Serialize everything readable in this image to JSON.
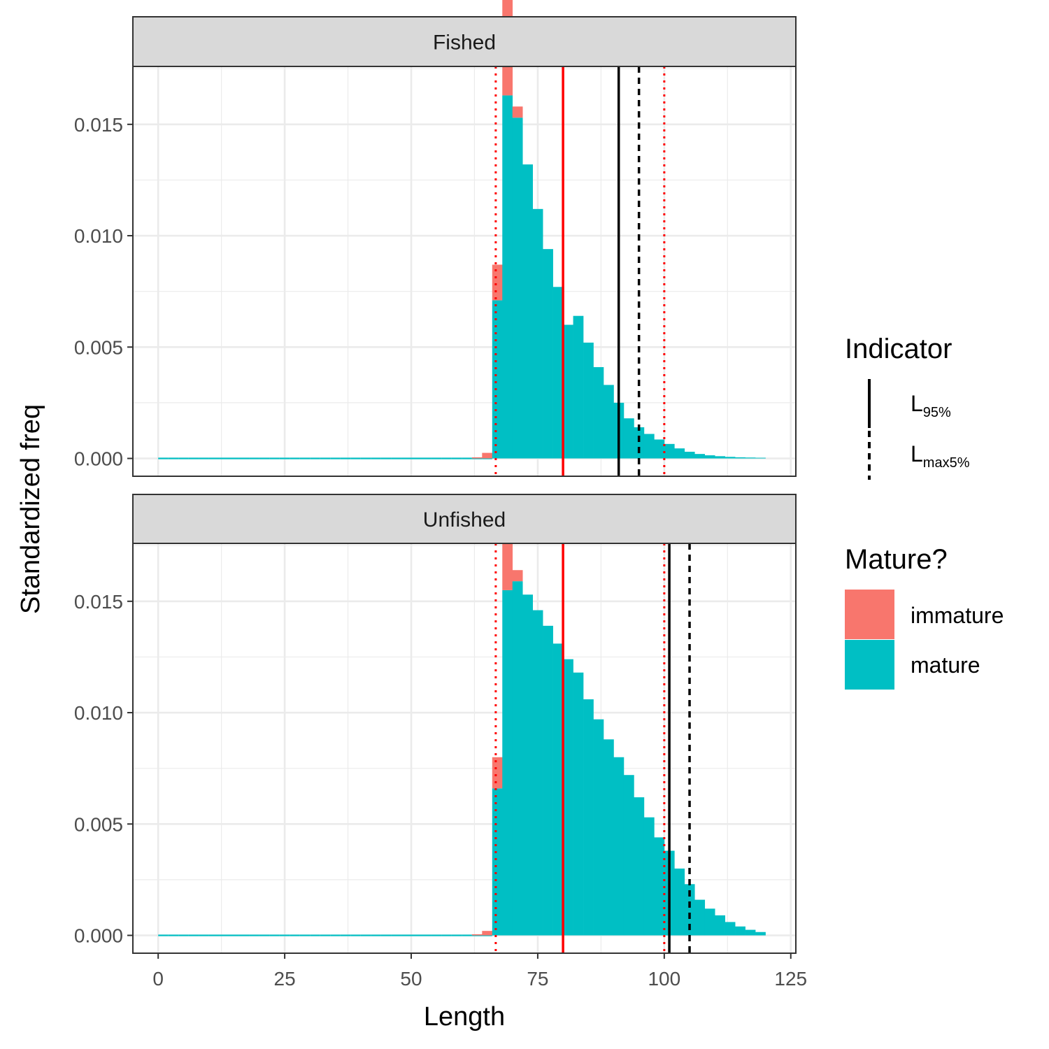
{
  "chart_data": {
    "type": "bar",
    "stacked": true,
    "xlabel": "Length",
    "ylabel": "Standardized freq",
    "xlim": [
      -5,
      126
    ],
    "ylim": [
      -0.0008,
      0.0176
    ],
    "x_ticks": [
      0,
      25,
      50,
      75,
      100,
      125
    ],
    "x_tick_labels": [
      "0",
      "25",
      "50",
      "75",
      "100",
      "125"
    ],
    "y_ticks": [
      0,
      0.005,
      0.01,
      0.015
    ],
    "y_tick_labels": [
      "0.000",
      "0.005",
      "0.010",
      "0.015"
    ],
    "grid": true,
    "bin_width": 2,
    "colors": {
      "immature": "#F8766D",
      "mature": "#00BFC4",
      "reference_lines": "#FF0000",
      "indicator_lines": "#000000"
    },
    "panels": [
      {
        "label": "Fished",
        "bin_starts": [
          0,
          2,
          4,
          6,
          8,
          10,
          12,
          14,
          16,
          18,
          20,
          22,
          24,
          26,
          28,
          30,
          32,
          34,
          36,
          38,
          40,
          42,
          44,
          46,
          48,
          50,
          52,
          54,
          56,
          58,
          60,
          62,
          64,
          66,
          68,
          70,
          72,
          74,
          76,
          78,
          80,
          82,
          84,
          86,
          88,
          90,
          92,
          94,
          96,
          98,
          100,
          102,
          104,
          106,
          108,
          110,
          112,
          114,
          116,
          118
        ],
        "mature": [
          0,
          0,
          0,
          0,
          0,
          0,
          0,
          0,
          0,
          0,
          0,
          0,
          0,
          0,
          0,
          0,
          0,
          0,
          0,
          0,
          0,
          0,
          0,
          0,
          0,
          0,
          0,
          0,
          0,
          0,
          0,
          0,
          0,
          0.0071,
          0.0163,
          0.0153,
          0.0132,
          0.0112,
          0.0094,
          0.0077,
          0.006,
          0.0064,
          0.0052,
          0.0041,
          0.0033,
          0.0025,
          0.0018,
          0.0014,
          0.0011,
          0.00085,
          0.00065,
          0.00045,
          0.0003,
          0.0002,
          0.00014,
          0.0001,
          7e-05,
          5e-05,
          4e-05,
          3e-05
        ],
        "immature": [
          0,
          0,
          0,
          0,
          0,
          0,
          0,
          0,
          0,
          0,
          0,
          0,
          0,
          0,
          0,
          0,
          0,
          0,
          0,
          0,
          0,
          0,
          0,
          0,
          0,
          0,
          0,
          0,
          0,
          0,
          0,
          5e-05,
          0.00025,
          0.0016,
          0.0045,
          0.0005,
          0,
          0,
          0,
          0,
          0,
          0,
          0,
          0,
          0,
          0,
          0,
          0,
          0,
          0,
          0,
          0,
          0,
          0,
          0,
          0,
          0,
          0,
          0,
          0
        ],
        "reference_lines": [
          {
            "x": 66.7,
            "style": "dotted",
            "color": "#FF0000"
          },
          {
            "x": 80,
            "style": "solid",
            "color": "#FF0000"
          },
          {
            "x": 100,
            "style": "dotted",
            "color": "#FF0000"
          }
        ],
        "indicators": [
          {
            "name": "L95%",
            "x": 91,
            "style": "solid"
          },
          {
            "name": "Lmax5%",
            "x": 95,
            "style": "dashed"
          }
        ]
      },
      {
        "label": "Unfished",
        "bin_starts": [
          0,
          2,
          4,
          6,
          8,
          10,
          12,
          14,
          16,
          18,
          20,
          22,
          24,
          26,
          28,
          30,
          32,
          34,
          36,
          38,
          40,
          42,
          44,
          46,
          48,
          50,
          52,
          54,
          56,
          58,
          60,
          62,
          64,
          66,
          68,
          70,
          72,
          74,
          76,
          78,
          80,
          82,
          84,
          86,
          88,
          90,
          92,
          94,
          96,
          98,
          100,
          102,
          104,
          106,
          108,
          110,
          112,
          114,
          116,
          118
        ],
        "mature": [
          0,
          0,
          0,
          0,
          0,
          0,
          0,
          0,
          0,
          0,
          0,
          0,
          0,
          0,
          0,
          0,
          0,
          0,
          0,
          0,
          0,
          0,
          0,
          0,
          0,
          0,
          0,
          0,
          0,
          0,
          0,
          0,
          0,
          0.0066,
          0.0155,
          0.0159,
          0.0153,
          0.0146,
          0.0139,
          0.0131,
          0.0124,
          0.0118,
          0.0106,
          0.0097,
          0.0088,
          0.008,
          0.0072,
          0.0062,
          0.0053,
          0.0044,
          0.0038,
          0.003,
          0.0023,
          0.0016,
          0.0012,
          0.0009,
          0.0006,
          0.0004,
          0.00025,
          0.00015
        ],
        "immature": [
          0,
          0,
          0,
          0,
          0,
          0,
          0,
          0,
          0,
          0,
          0,
          0,
          0,
          0,
          0,
          0,
          0,
          0,
          0,
          0,
          0,
          0,
          0,
          0,
          0,
          0,
          0,
          0,
          0,
          0,
          0,
          5e-05,
          0.0002,
          0.0014,
          0.004,
          0.0005,
          0,
          0,
          0,
          0,
          0,
          0,
          0,
          0,
          0,
          0,
          0,
          0,
          0,
          0,
          0,
          0,
          0,
          0,
          0,
          0,
          0,
          0,
          0,
          0
        ],
        "reference_lines": [
          {
            "x": 66.7,
            "style": "dotted",
            "color": "#FF0000"
          },
          {
            "x": 80,
            "style": "solid",
            "color": "#FF0000"
          },
          {
            "x": 100,
            "style": "dotted",
            "color": "#FF0000"
          }
        ],
        "indicators": [
          {
            "name": "L95%",
            "x": 101,
            "style": "solid"
          },
          {
            "name": "Lmax5%",
            "x": 105,
            "style": "dashed"
          }
        ]
      }
    ],
    "legend": {
      "placement": "right",
      "indicator": {
        "title": "Indicator",
        "items": [
          {
            "main": "L",
            "sub": "95%",
            "style": "solid"
          },
          {
            "main": "L",
            "sub": "max5%",
            "style": "dashed"
          }
        ]
      },
      "fill": {
        "title": "Mature?",
        "items": [
          {
            "label": "immature",
            "color": "#F8766D"
          },
          {
            "label": "mature",
            "color": "#00BFC4"
          }
        ]
      }
    }
  }
}
